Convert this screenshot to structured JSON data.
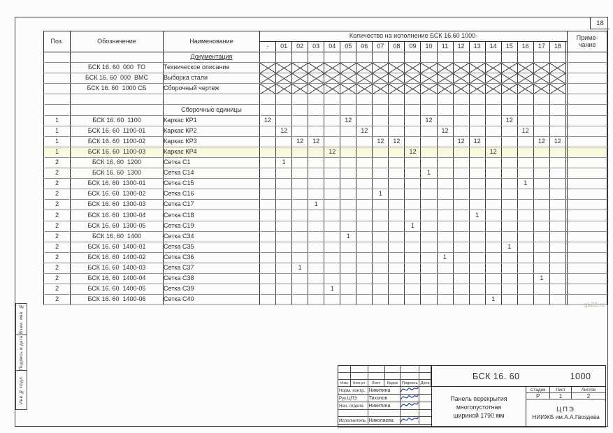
{
  "frame": {
    "sheet_number": "18",
    "side_labels": [
      "Взам. инв. №",
      "Подпись и дата",
      "Инв.№ подл."
    ],
    "watermark": "gb22.ru"
  },
  "colors": {
    "signature": "#2e3f9b",
    "line": "#3a3a3a",
    "tint": "#fbf8e0",
    "watermark": "#b4b4ac"
  },
  "table": {
    "headers": {
      "pos": "Поз.",
      "designation": "Обозначение",
      "name": "Наименование",
      "qty_group": "Количество на исполнение БСК 16.60   1000-",
      "note_line1": "Приме-",
      "note_line2": "чание"
    },
    "qty_columns": [
      "-",
      "01",
      "02",
      "03",
      "04",
      "05",
      "06",
      "07",
      "08",
      "09",
      "10",
      "11",
      "12",
      "13",
      "14",
      "15",
      "16",
      "17",
      "18"
    ],
    "rows": [
      {
        "section": "Документация",
        "underlined": true
      },
      {
        "designation": "БСК 16. 60  000  ТО",
        "name": "Техническое описание",
        "crossed": true
      },
      {
        "designation": "БСК 16. 60  000  ВМС",
        "name": "Выборка стали",
        "crossed": true
      },
      {
        "designation": "БСК 16. 60  1000 СБ",
        "name": "Сборочный чертеж",
        "crossed": true
      },
      {},
      {
        "section": "Сборочные единицы"
      },
      {
        "pos": "1",
        "designation": "БСК 16. 60  1100",
        "name": "Каркас КР1",
        "qty": {
          "-": "12",
          "05": "12",
          "10": "12",
          "15": "12"
        }
      },
      {
        "pos": "1",
        "designation": "БСК 16. 60  1100-01",
        "name": "Каркас КР2",
        "qty": {
          "01": "12",
          "06": "12",
          "11": "12",
          "16": "12"
        }
      },
      {
        "pos": "1",
        "designation": "БСК 16. 60  1100-02",
        "name": "Каркас КР3",
        "qty": {
          "02": "12",
          "03": "12",
          "07": "12",
          "08": "12",
          "12": "12",
          "13": "12",
          "17": "12",
          "18": "12"
        }
      },
      {
        "pos": "1",
        "designation": "БСК 16. 60  1100-03",
        "name": "Каркас КР4",
        "qty": {
          "04": "12",
          "09": "12",
          "14": "12"
        },
        "tinted": true
      },
      {
        "pos": "2",
        "designation": "БСК 16. 60  1200",
        "name": "Сетка С1",
        "qty": {
          "01": "1"
        }
      },
      {
        "pos": "2",
        "designation": "БСК 16. 60  1300",
        "name": "Сетка С14",
        "qty": {
          "10": "1"
        }
      },
      {
        "pos": "2",
        "designation": "БСК 16. 60  1300-01",
        "name": "Сетка С15",
        "qty": {
          "16": "1"
        }
      },
      {
        "pos": "2",
        "designation": "БСК 16. 60  1300-02",
        "name": "Сетка С16",
        "qty": {
          "07": "1"
        }
      },
      {
        "pos": "2",
        "designation": "БСК 16. 60  1300-03",
        "name": "Сетка С17",
        "qty": {
          "03": "1"
        }
      },
      {
        "pos": "2",
        "designation": "БСК 16. 60  1300-04",
        "name": "Сетка С18",
        "qty": {
          "13": "1"
        }
      },
      {
        "pos": "2",
        "designation": "БСК 16. 60  1300-05",
        "name": "Сетка С19",
        "qty": {
          "09": "1"
        }
      },
      {
        "pos": "2",
        "designation": "БСК 16. 60  1400",
        "name": "Сетка С34",
        "qty": {
          "05": "1"
        }
      },
      {
        "pos": "2",
        "designation": "БСК 16. 60  1400-01",
        "name": "Сетка С35",
        "qty": {
          "15": "1"
        }
      },
      {
        "pos": "2",
        "designation": "БСК 16. 60  1400-02",
        "name": "Сетка С36",
        "qty": {
          "11": "1"
        }
      },
      {
        "pos": "2",
        "designation": "БСК 16. 60  1400-03",
        "name": "Сетка С37",
        "qty": {
          "02": "1"
        }
      },
      {
        "pos": "2",
        "designation": "БСК 16. 60  1400-04",
        "name": "Сетка С38",
        "qty": {
          "17": "1"
        }
      },
      {
        "pos": "2",
        "designation": "БСК 16. 60  1400-05",
        "name": "Сетка С39",
        "qty": {
          "04": "1"
        }
      },
      {
        "pos": "2",
        "designation": "БСК 16. 60  1400-06",
        "name": "Сетка С40",
        "qty": {
          "14": "1"
        }
      }
    ]
  },
  "title_block": {
    "doc_code": "БСК 16. 60",
    "doc_variant": "1000",
    "project_lines": [
      "Панель перекрытия",
      "многопустотная",
      "шириной  1790 мм"
    ],
    "sign_header": [
      "Изм",
      "Кол.уч",
      "Лист",
      "№док",
      "Подпись",
      "Дата"
    ],
    "sign_rows": [
      {
        "role": "Норм. контр.",
        "name": "Никитина",
        "signed": true
      },
      {
        "role": "Рук.ЦПЭ",
        "name": "Тихонов",
        "signed": true
      },
      {
        "role": "Нач. отдела",
        "name": "Никитина",
        "signed": true
      },
      {
        "role": "",
        "name": "",
        "signed": false
      },
      {
        "role": "Исполнитель",
        "name": "Николаева",
        "signed": true
      }
    ],
    "stage_header": [
      "Стадия",
      "Лист",
      "Листов"
    ],
    "stage_values": [
      "Р",
      "1",
      "2"
    ],
    "org_lines": [
      "ЦПЭ",
      "НИИЖБ им.А.А.Гвоздева"
    ]
  }
}
